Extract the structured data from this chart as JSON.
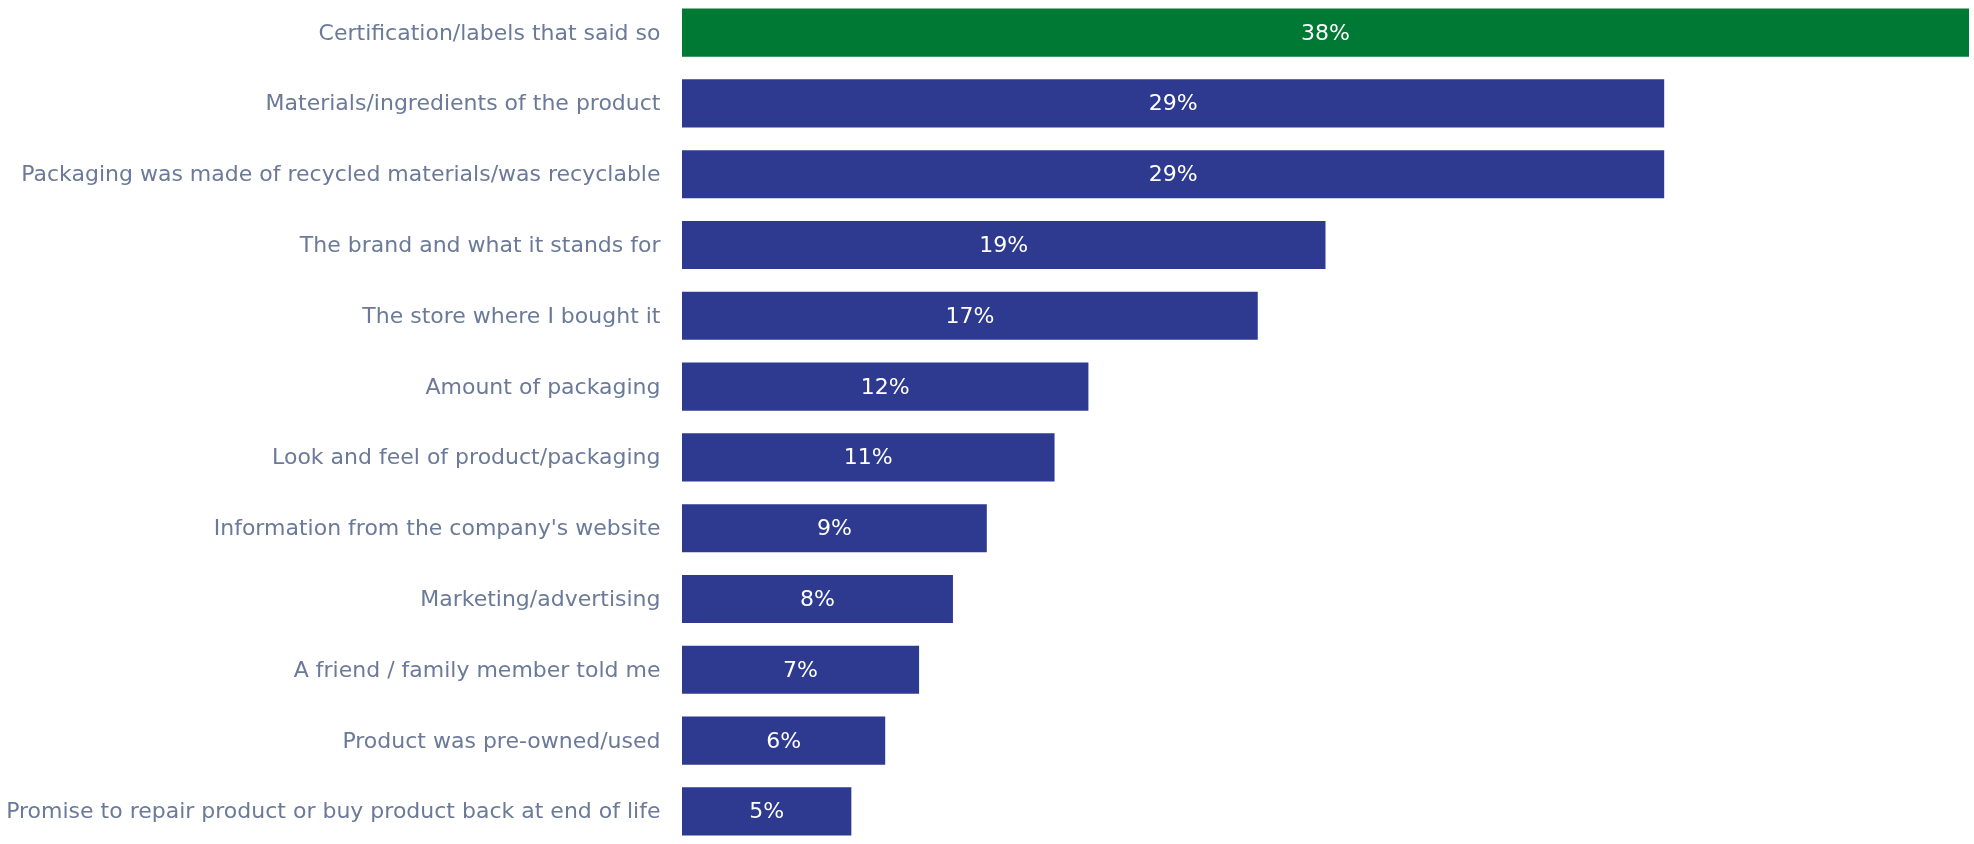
{
  "chart_data": {
    "type": "bar",
    "orientation": "horizontal",
    "categories": [
      "Certification/labels that said so",
      "Materials/ingredients of the product",
      "Packaging was made of recycled materials/was recyclable",
      "The brand and what it stands for",
      "The store where I bought it",
      "Amount of packaging",
      "Look and feel of product/packaging",
      "Information from the company's website",
      "Marketing/advertising",
      "A friend / family member told me",
      "Product was pre-owned/used",
      "Promise to repair product or buy product back at end of life"
    ],
    "values": [
      38,
      29,
      29,
      19,
      17,
      12,
      11,
      9,
      8,
      7,
      6,
      5
    ],
    "colors": [
      "#007934",
      "#2e3a8f",
      "#2e3a8f",
      "#2e3a8f",
      "#2e3a8f",
      "#2e3a8f",
      "#2e3a8f",
      "#2e3a8f",
      "#2e3a8f",
      "#2e3a8f",
      "#2e3a8f",
      "#2e3a8f"
    ],
    "value_labels": [
      "38%",
      "29%",
      "29%",
      "19%",
      "17%",
      "12%",
      "11%",
      "9%",
      "8%",
      "7%",
      "6%",
      "5%"
    ],
    "grid": false
  }
}
